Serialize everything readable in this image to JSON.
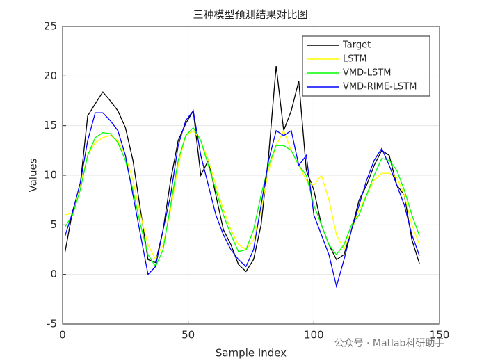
{
  "chart_data": {
    "type": "line",
    "title": "三种模型预测结果对比图",
    "xlabel": "Sample Index",
    "ylabel": "Values",
    "watermark": "公众号 · Matlab科研助手",
    "x": [
      1,
      4,
      7,
      10,
      13,
      16,
      19,
      22,
      25,
      28,
      31,
      34,
      37,
      40,
      43,
      46,
      49,
      52,
      55,
      58,
      61,
      64,
      67,
      70,
      73,
      76,
      79,
      82,
      85,
      88,
      91,
      94,
      97,
      100,
      103,
      106,
      109,
      112,
      115,
      118,
      121,
      124,
      127,
      130,
      133,
      136,
      139,
      142
    ],
    "series": [
      {
        "name": "Target",
        "color": "#000000",
        "values": [
          2.3,
          6.4,
          9.0,
          16.0,
          17.2,
          18.4,
          17.5,
          16.5,
          14.8,
          11.5,
          6.5,
          1.5,
          1.2,
          4.5,
          9.5,
          13.5,
          15.2,
          16.5,
          10.0,
          11.5,
          8.0,
          4.5,
          3.0,
          1.0,
          0.3,
          1.5,
          5.0,
          12.0,
          21.0,
          14.5,
          16.5,
          19.5,
          10.5,
          8.5,
          5.0,
          3.0,
          1.5,
          2.0,
          4.5,
          7.5,
          9.0,
          11.0,
          12.5,
          12.0,
          9.0,
          8.0,
          3.5,
          1.1
        ]
      },
      {
        "name": "LSTM",
        "color": "#ffff00",
        "values": [
          6,
          6.2,
          9,
          12,
          13.3,
          13.8,
          14,
          13.5,
          12,
          9.5,
          6,
          3,
          1.5,
          3,
          6.5,
          11,
          14,
          14.5,
          13.5,
          11.5,
          9,
          6.5,
          4.5,
          3,
          2.5,
          3.5,
          6.5,
          10.5,
          13,
          14.5,
          12.5,
          11,
          9.5,
          9,
          10,
          7.5,
          4,
          2.5,
          4.5,
          6.5,
          8,
          9.5,
          10.2,
          10.2,
          9.8,
          8,
          5,
          3
        ]
      },
      {
        "name": "VMD-LSTM",
        "color": "#00ff00",
        "values": [
          4.8,
          6,
          8.5,
          12,
          13.8,
          14.3,
          14.2,
          13.3,
          11.5,
          8.5,
          5,
          2,
          0.8,
          2.5,
          7,
          11.5,
          14,
          14.8,
          13.5,
          11,
          8.5,
          6,
          4,
          2.3,
          2.5,
          4.5,
          8,
          11,
          13,
          13,
          12.5,
          11,
          10,
          7,
          5,
          3,
          2,
          3,
          5,
          6,
          8,
          10,
          11.7,
          11.5,
          10.5,
          8.5,
          6,
          3.9
        ]
      },
      {
        "name": "VMD-RIME-LSTM",
        "color": "#0000ff",
        "values": [
          3.9,
          6.3,
          9.2,
          13.5,
          16.3,
          16.3,
          15.5,
          14.5,
          12,
          8,
          4,
          0,
          0.8,
          4.5,
          8,
          13,
          15.5,
          16.5,
          12,
          9,
          6,
          4,
          2.5,
          1.5,
          0.8,
          2.5,
          7,
          11.5,
          14.5,
          14,
          14.5,
          11,
          12,
          6,
          4,
          2,
          -1.2,
          1.5,
          4.5,
          7,
          9.5,
          11.5,
          12.7,
          11,
          9,
          7,
          4,
          1.9
        ]
      }
    ],
    "xlim": [
      0,
      150
    ],
    "xticks": [
      0,
      50,
      100,
      150
    ],
    "ylim": [
      -5,
      25
    ],
    "yticks": [
      -5,
      0,
      5,
      10,
      15,
      20,
      25
    ],
    "grid": true,
    "legend": "northeast"
  }
}
